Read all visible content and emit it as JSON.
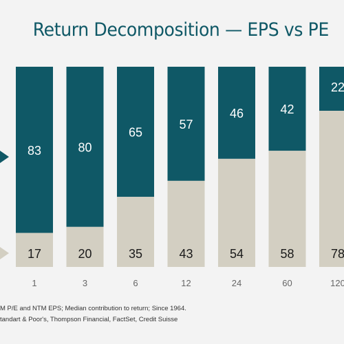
{
  "chart_data": {
    "type": "bar",
    "stacked": true,
    "title": "Return Decomposition — EPS vs PE",
    "categories": [
      "1",
      "3",
      "6",
      "12",
      "24",
      "60",
      "120"
    ],
    "series": [
      {
        "values": [
          17,
          20,
          35,
          43,
          54,
          58,
          78
        ]
      },
      {
        "values": [
          83,
          80,
          65,
          57,
          46,
          42,
          22
        ]
      }
    ],
    "ylim": [
      0,
      100
    ],
    "grid": false,
    "legend": "none"
  },
  "notes": [
    "M P/E and NTM EPS; Median contribution to return; Since 1964.",
    "tandart & Poor's, Thompson Financial, FactSet, Credit Suisse"
  ],
  "colors": {
    "top_series": "#0f5866",
    "bottom_series": "#d3cfc2",
    "title": "#0f5866",
    "background": "#f3f3f3"
  }
}
